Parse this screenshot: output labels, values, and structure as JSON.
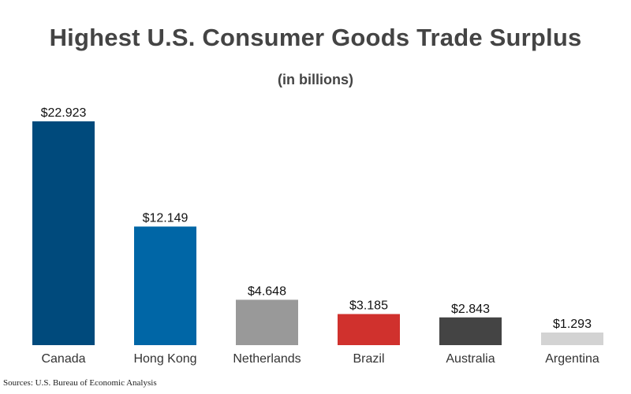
{
  "chart_data": {
    "type": "bar",
    "title": "Highest U.S. Consumer Goods Trade Surplus",
    "subtitle": "(in billions)",
    "categories": [
      "Canada",
      "Hong Kong",
      "Netherlands",
      "Brazil",
      "Australia",
      "Argentina"
    ],
    "values": [
      22.923,
      12.149,
      4.648,
      3.185,
      2.843,
      1.293
    ],
    "value_labels": [
      "$22.923",
      "$12.149",
      "$4.648",
      "$3.185",
      "$2.843",
      "$1.293"
    ],
    "colors": [
      "#004a7c",
      "#0066a6",
      "#999999",
      "#d0312d",
      "#444444",
      "#d3d3d3"
    ],
    "xlabel": "",
    "ylabel": "",
    "ylim": [
      0,
      22.923
    ],
    "grid": false,
    "legend": "none"
  },
  "source": "Sources: U.S. Bureau of Economic Analysis"
}
